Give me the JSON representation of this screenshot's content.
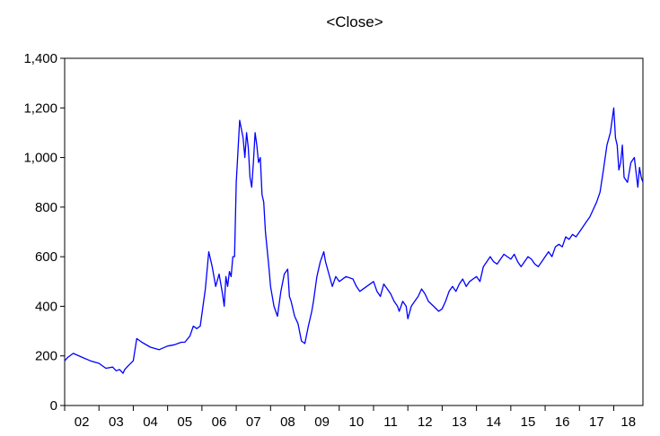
{
  "chart_data": {
    "type": "line",
    "title": "<Close>",
    "xlabel": "",
    "ylabel": "",
    "ylim": [
      0,
      1400
    ],
    "yticks": [
      0,
      200,
      400,
      600,
      800,
      1000,
      1200,
      1400
    ],
    "ytick_labels": [
      "0",
      "200",
      "400",
      "600",
      "800",
      "1,000",
      "1,200",
      "1,400"
    ],
    "xlim": [
      2002.0,
      2018.85
    ],
    "xtick_labels": [
      "02",
      "03",
      "04",
      "05",
      "06",
      "07",
      "08",
      "09",
      "10",
      "11",
      "12",
      "13",
      "14",
      "15",
      "16",
      "17",
      "18"
    ],
    "grid": false,
    "line_color": "#0000ff",
    "series": [
      {
        "x": [
          2002.0,
          2002.1,
          2002.25,
          2002.5,
          2002.75,
          2003.0,
          2003.2,
          2003.4,
          2003.5,
          2003.6,
          2003.7,
          2003.75,
          2003.85,
          2004.0,
          2004.1,
          2004.25,
          2004.5,
          2004.75,
          2005.0,
          2005.2,
          2005.3,
          2005.4,
          2005.5,
          2005.65,
          2005.75,
          2005.85,
          2005.95,
          2006.05,
          2006.1,
          2006.2,
          2006.3,
          2006.4,
          2006.5,
          2006.6,
          2006.65,
          2006.7,
          2006.75,
          2006.8,
          2006.85,
          2006.9,
          2006.95,
          2007.0,
          2007.1,
          2007.2,
          2007.25,
          2007.3,
          2007.35,
          2007.4,
          2007.45,
          2007.5,
          2007.55,
          2007.6,
          2007.65,
          2007.7,
          2007.75,
          2007.8,
          2007.85,
          2007.95,
          2008.0,
          2008.1,
          2008.2,
          2008.3,
          2008.4,
          2008.5,
          2008.55,
          2008.6,
          2008.7,
          2008.8,
          2008.9,
          2009.0,
          2009.1,
          2009.2,
          2009.25,
          2009.35,
          2009.45,
          2009.55,
          2009.6,
          2009.7,
          2009.8,
          2009.9,
          2010.0,
          2010.2,
          2010.4,
          2010.5,
          2010.6,
          2010.8,
          2011.0,
          2011.1,
          2011.2,
          2011.3,
          2011.4,
          2011.5,
          2011.6,
          2011.7,
          2011.75,
          2011.85,
          2011.95,
          2012.0,
          2012.1,
          2012.2,
          2012.3,
          2012.4,
          2012.5,
          2012.6,
          2012.75,
          2012.9,
          2013.0,
          2013.1,
          2013.2,
          2013.3,
          2013.4,
          2013.5,
          2013.6,
          2013.7,
          2013.8,
          2013.9,
          2014.0,
          2014.1,
          2014.2,
          2014.3,
          2014.4,
          2014.5,
          2014.6,
          2014.7,
          2014.8,
          2014.9,
          2015.0,
          2015.1,
          2015.2,
          2015.3,
          2015.4,
          2015.5,
          2015.6,
          2015.7,
          2015.8,
          2015.9,
          2016.0,
          2016.1,
          2016.2,
          2016.3,
          2016.4,
          2016.5,
          2016.6,
          2016.7,
          2016.8,
          2016.9,
          2017.0,
          2017.1,
          2017.2,
          2017.3,
          2017.4,
          2017.5,
          2017.6,
          2017.7,
          2017.8,
          2017.9,
          2017.95,
          2018.0,
          2018.05,
          2018.1,
          2018.15,
          2018.2,
          2018.25,
          2018.3,
          2018.4,
          2018.5,
          2018.6,
          2018.7,
          2018.75,
          2018.8,
          2018.85
        ],
        "values": [
          180,
          195,
          210,
          195,
          180,
          170,
          150,
          155,
          140,
          145,
          130,
          145,
          160,
          180,
          270,
          255,
          235,
          225,
          240,
          245,
          250,
          255,
          255,
          280,
          320,
          310,
          320,
          420,
          470,
          620,
          560,
          480,
          530,
          450,
          400,
          520,
          480,
          540,
          520,
          600,
          600,
          900,
          1150,
          1080,
          1000,
          1100,
          1040,
          920,
          880,
          980,
          1100,
          1050,
          980,
          1000,
          850,
          820,
          700,
          560,
          480,
          400,
          360,
          460,
          530,
          550,
          440,
          420,
          360,
          330,
          260,
          250,
          320,
          380,
          420,
          520,
          580,
          620,
          580,
          530,
          480,
          520,
          500,
          520,
          510,
          480,
          460,
          480,
          500,
          460,
          440,
          490,
          470,
          450,
          420,
          400,
          380,
          420,
          400,
          350,
          400,
          420,
          440,
          470,
          450,
          420,
          400,
          380,
          390,
          420,
          460,
          480,
          460,
          490,
          510,
          480,
          500,
          510,
          520,
          500,
          560,
          580,
          600,
          580,
          570,
          590,
          610,
          600,
          590,
          610,
          580,
          560,
          580,
          600,
          590,
          570,
          560,
          580,
          600,
          620,
          600,
          640,
          650,
          640,
          680,
          670,
          690,
          680,
          700,
          720,
          740,
          760,
          790,
          820,
          860,
          950,
          1050,
          1100,
          1150,
          1200,
          1080,
          1050,
          950,
          980,
          1050,
          920,
          900,
          980,
          1000,
          880,
          960,
          920,
          900
        ],
        "name": ""
      }
    ]
  }
}
